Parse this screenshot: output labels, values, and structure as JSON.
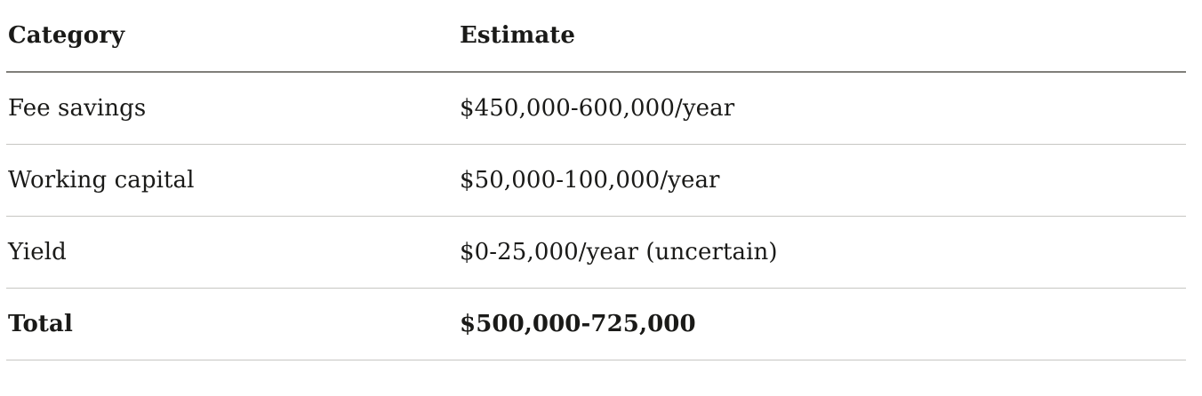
{
  "table": {
    "headers": {
      "category": "Category",
      "estimate": "Estimate"
    },
    "rows": [
      {
        "category": "Fee savings",
        "estimate": "$450,000-600,000/year"
      },
      {
        "category": "Working capital",
        "estimate": "$50,000-100,000/year"
      },
      {
        "category": "Yield",
        "estimate": "$0-25,000/year (uncertain)"
      },
      {
        "category": "Total",
        "estimate": "$500,000-725,000",
        "emphasis": "bold"
      }
    ],
    "colors": {
      "background": "#ffffff",
      "text": "#1a1a18",
      "header_rule": "#807f7a",
      "row_rule": "#c7c6c2"
    }
  }
}
